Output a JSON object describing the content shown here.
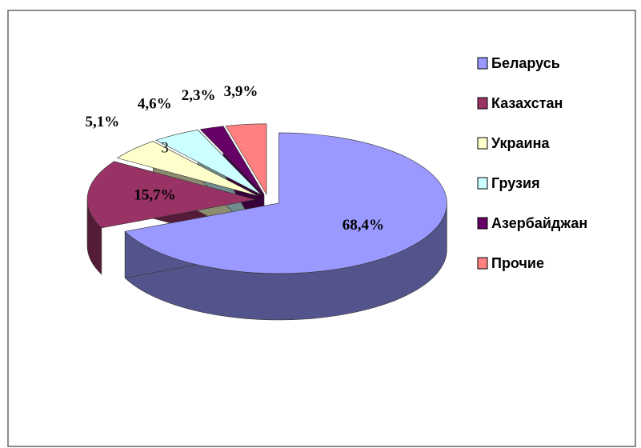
{
  "chart_data": {
    "type": "pie",
    "categories": [
      "Беларусь",
      "Казахстан",
      "Украина",
      "Грузия",
      "Азербайджан",
      "Прочие"
    ],
    "values": [
      68.4,
      15.7,
      5.1,
      4.6,
      2.3,
      3.9
    ],
    "value_labels": [
      "68,4%",
      "15,7%",
      "5,1%",
      "4,6%",
      "2,3%",
      "3,9%"
    ],
    "colors": [
      "#9999ff",
      "#993366",
      "#ffffcc",
      "#ccffff",
      "#660066",
      "#ff8080"
    ],
    "annotations": [
      "3"
    ],
    "legend": "right"
  }
}
